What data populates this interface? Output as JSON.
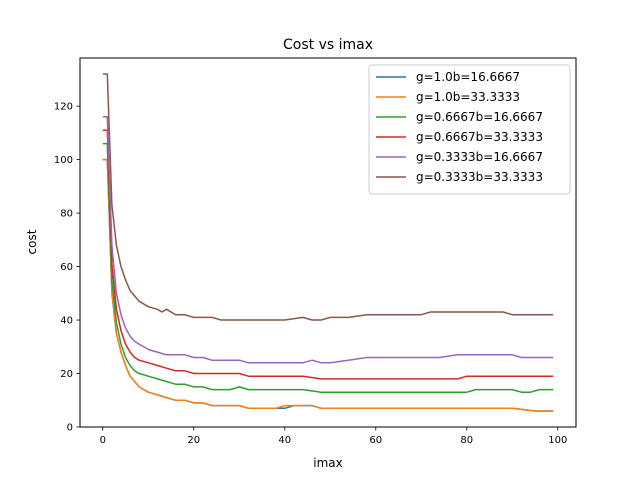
{
  "chart_data": {
    "type": "line",
    "title": "Cost vs imax",
    "xlabel": "imax",
    "ylabel": "cost",
    "xlim": [
      -5,
      104
    ],
    "ylim": [
      0,
      138
    ],
    "xticks": [
      0,
      20,
      40,
      60,
      80,
      100
    ],
    "yticks": [
      0,
      20,
      40,
      60,
      80,
      100,
      120
    ],
    "grid": false,
    "legend_position": "top-right",
    "series": [
      {
        "name": "g=1.0b=16.6667",
        "color": "#1f77b4",
        "x": [
          0,
          1,
          2,
          3,
          4,
          5,
          6,
          7,
          8,
          9,
          10,
          12,
          14,
          16,
          18,
          20,
          22,
          24,
          26,
          28,
          30,
          32,
          34,
          36,
          38,
          40,
          42,
          44,
          46,
          48,
          50,
          55,
          60,
          65,
          70,
          75,
          80,
          85,
          90,
          95,
          99
        ],
        "y": [
          100,
          100,
          50,
          35,
          28,
          23,
          19,
          17,
          15,
          14,
          13,
          12,
          11,
          10,
          10,
          9,
          9,
          8,
          8,
          8,
          8,
          7,
          7,
          7,
          7,
          7,
          8,
          8,
          8,
          7,
          7,
          7,
          7,
          7,
          7,
          7,
          7,
          7,
          7,
          6,
          6
        ]
      },
      {
        "name": "g=1.0b=33.3333",
        "color": "#ff7f0e",
        "x": [
          0,
          1,
          2,
          3,
          4,
          5,
          6,
          7,
          8,
          9,
          10,
          12,
          14,
          16,
          18,
          20,
          22,
          24,
          26,
          28,
          30,
          32,
          34,
          36,
          38,
          40,
          42,
          44,
          46,
          48,
          50,
          55,
          60,
          65,
          70,
          75,
          80,
          85,
          90,
          95,
          99
        ],
        "y": [
          100,
          100,
          51,
          35,
          28,
          23,
          19,
          17,
          15,
          14,
          13,
          12,
          11,
          10,
          10,
          9,
          9,
          8,
          8,
          8,
          8,
          7,
          7,
          7,
          7,
          8,
          8,
          8,
          8,
          7,
          7,
          7,
          7,
          7,
          7,
          7,
          7,
          7,
          7,
          6,
          6
        ]
      },
      {
        "name": "g=0.6667b=16.6667",
        "color": "#2ca02c",
        "x": [
          0,
          1,
          2,
          3,
          4,
          5,
          6,
          7,
          8,
          10,
          12,
          14,
          16,
          18,
          20,
          22,
          24,
          26,
          28,
          30,
          32,
          36,
          40,
          44,
          48,
          50,
          55,
          60,
          65,
          70,
          75,
          80,
          82,
          85,
          90,
          92,
          94,
          96,
          99
        ],
        "y": [
          106,
          106,
          55,
          39,
          31,
          26,
          23,
          21,
          20,
          19,
          18,
          17,
          16,
          16,
          15,
          15,
          14,
          14,
          14,
          15,
          14,
          14,
          14,
          14,
          13,
          13,
          13,
          13,
          13,
          13,
          13,
          13,
          14,
          14,
          14,
          13,
          13,
          14,
          14
        ]
      },
      {
        "name": "g=0.6667b=33.3333",
        "color": "#d62728",
        "x": [
          0,
          1,
          2,
          3,
          4,
          5,
          6,
          7,
          8,
          10,
          12,
          14,
          16,
          18,
          20,
          22,
          24,
          26,
          28,
          30,
          32,
          36,
          40,
          44,
          48,
          50,
          55,
          60,
          65,
          70,
          75,
          78,
          80,
          85,
          90,
          95,
          99
        ],
        "y": [
          111,
          111,
          61,
          44,
          36,
          31,
          28,
          26,
          25,
          24,
          23,
          22,
          21,
          21,
          20,
          20,
          20,
          20,
          20,
          20,
          19,
          19,
          19,
          19,
          18,
          18,
          18,
          18,
          18,
          18,
          18,
          18,
          19,
          19,
          19,
          19,
          19
        ]
      },
      {
        "name": "g=0.3333b=16.6667",
        "color": "#9467bd",
        "x": [
          0,
          1,
          2,
          3,
          4,
          5,
          6,
          7,
          8,
          10,
          12,
          14,
          16,
          18,
          20,
          22,
          24,
          26,
          28,
          30,
          32,
          36,
          40,
          44,
          46,
          48,
          50,
          54,
          58,
          62,
          66,
          70,
          74,
          78,
          82,
          86,
          90,
          92,
          94,
          96,
          99
        ],
        "y": [
          116,
          116,
          68,
          50,
          42,
          37,
          34,
          32,
          31,
          29,
          28,
          27,
          27,
          27,
          26,
          26,
          25,
          25,
          25,
          25,
          24,
          24,
          24,
          24,
          25,
          24,
          24,
          25,
          26,
          26,
          26,
          26,
          26,
          27,
          27,
          27,
          27,
          26,
          26,
          26,
          26
        ]
      },
      {
        "name": "g=0.3333b=33.3333",
        "color": "#8c564b",
        "x": [
          0,
          1,
          2,
          3,
          4,
          5,
          6,
          7,
          8,
          10,
          12,
          13,
          14,
          15,
          16,
          18,
          20,
          22,
          24,
          26,
          28,
          30,
          32,
          36,
          40,
          44,
          46,
          47,
          48,
          50,
          54,
          58,
          62,
          66,
          70,
          72,
          76,
          80,
          84,
          88,
          90,
          92,
          96,
          99
        ],
        "y": [
          132,
          132,
          83,
          68,
          60,
          55,
          51,
          49,
          47,
          45,
          44,
          43,
          44,
          43,
          42,
          42,
          41,
          41,
          41,
          40,
          40,
          40,
          40,
          40,
          40,
          41,
          40,
          40,
          40,
          41,
          41,
          42,
          42,
          42,
          42,
          43,
          43,
          43,
          43,
          43,
          42,
          42,
          42,
          42
        ]
      }
    ]
  }
}
